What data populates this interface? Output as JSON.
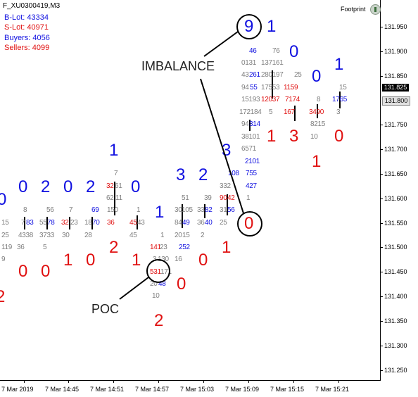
{
  "window": {
    "symbol": "F_XU0300419,M3",
    "indicator_name": "Footprint",
    "indicator_icon": "footprint-indicator-icon"
  },
  "stats": [
    {
      "label": "B-Lot:",
      "value": "43334",
      "color": "#1010e0"
    },
    {
      "label": "S-Lot:",
      "value": "40971",
      "color": "#e01010"
    },
    {
      "label": "Buyers:",
      "value": "4056",
      "color": "#1010e0"
    },
    {
      "label": "Sellers:",
      "value": "4099",
      "color": "#e01010"
    }
  ],
  "price_axis": {
    "labels": [
      "131.950",
      "131.900",
      "131.850",
      "131.800",
      "131.750",
      "131.700",
      "131.650",
      "131.600",
      "131.550",
      "131.500",
      "131.450",
      "131.400",
      "131.350",
      "131.300",
      "131.250"
    ],
    "current_bid": "131.825",
    "current_ask": "131.800"
  },
  "time_axis": {
    "labels": [
      "7 Mar 2019",
      "7 Mar 14:45",
      "7 Mar 14:51",
      "7 Mar 14:57",
      "7 Mar 15:03",
      "7 Mar 15:09",
      "7 Mar 15:15",
      "7 Mar 15:21"
    ]
  },
  "annotations": {
    "imbalance": "IMBALANCE",
    "poc": "POC",
    "imbalance_circled_top": "9",
    "imbalance_circled_bottom": "0"
  },
  "big_numbers": [
    {
      "t": "0",
      "c": "blue"
    },
    {
      "t": "0",
      "c": "blue"
    },
    {
      "t": "2",
      "c": "blue"
    },
    {
      "t": "0",
      "c": "blue"
    },
    {
      "t": "2",
      "c": "blue"
    },
    {
      "t": "0",
      "c": "blue"
    },
    {
      "t": "1",
      "c": "blue"
    },
    {
      "t": "1",
      "c": "blue"
    },
    {
      "t": "3",
      "c": "blue"
    },
    {
      "t": "2",
      "c": "blue"
    },
    {
      "t": "3",
      "c": "blue"
    },
    {
      "t": "1",
      "c": "blue"
    },
    {
      "t": "0",
      "c": "blue"
    },
    {
      "t": "0",
      "c": "blue"
    },
    {
      "t": "1",
      "c": "blue"
    },
    {
      "t": "2",
      "c": "red"
    },
    {
      "t": "0",
      "c": "red"
    },
    {
      "t": "0",
      "c": "red"
    },
    {
      "t": "1",
      "c": "red"
    },
    {
      "t": "0",
      "c": "red"
    },
    {
      "t": "2",
      "c": "red"
    },
    {
      "t": "1",
      "c": "red"
    },
    {
      "t": "0",
      "c": "red"
    },
    {
      "t": "0",
      "c": "red"
    },
    {
      "t": "0",
      "c": "red"
    },
    {
      "t": "1",
      "c": "red"
    },
    {
      "t": "2",
      "c": "red"
    },
    {
      "t": "1",
      "c": "red"
    },
    {
      "t": "3",
      "c": "red"
    },
    {
      "t": "0",
      "c": "red"
    },
    {
      "t": "1",
      "c": "red"
    }
  ],
  "cells": [
    {
      "t": "15",
      "c": "gray"
    },
    {
      "t": "25",
      "c": "gray"
    },
    {
      "t": "119",
      "c": "gray"
    },
    {
      "t": "9",
      "c": "gray"
    },
    {
      "t": "8",
      "c": "gray"
    },
    {
      "t": "7",
      "c": "gray"
    },
    {
      "t": "83",
      "c": "blue"
    },
    {
      "t": "4338",
      "c": "gray"
    },
    {
      "t": "36",
      "c": "gray"
    },
    {
      "t": "56",
      "c": "gray"
    },
    {
      "t": "55",
      "c": "gray"
    },
    {
      "t": "78",
      "c": "blue"
    },
    {
      "t": "3733",
      "c": "gray"
    },
    {
      "t": "5",
      "c": "gray"
    },
    {
      "t": "7",
      "c": "gray"
    },
    {
      "t": "32",
      "c": "red"
    },
    {
      "t": "23",
      "c": "gray"
    },
    {
      "t": "30",
      "c": "gray"
    },
    {
      "t": "69",
      "c": "blue"
    },
    {
      "t": "18",
      "c": "gray"
    },
    {
      "t": "70",
      "c": "blue"
    },
    {
      "t": "28",
      "c": "gray"
    },
    {
      "t": "7",
      "c": "gray"
    },
    {
      "t": "32",
      "c": "red"
    },
    {
      "t": "61",
      "c": "gray"
    },
    {
      "t": "62",
      "c": "gray"
    },
    {
      "t": "11",
      "c": "gray"
    },
    {
      "t": "150",
      "c": "gray"
    },
    {
      "t": "36",
      "c": "red"
    },
    {
      "t": "1",
      "c": "gray"
    },
    {
      "t": "45",
      "c": "red"
    },
    {
      "t": "43",
      "c": "gray"
    },
    {
      "t": "45",
      "c": "gray"
    },
    {
      "t": "51",
      "c": "gray"
    },
    {
      "t": "30",
      "c": "gray"
    },
    {
      "t": "105",
      "c": "gray"
    },
    {
      "t": "84",
      "c": "gray"
    },
    {
      "t": "49",
      "c": "blue"
    },
    {
      "t": "1",
      "c": "gray"
    },
    {
      "t": "20",
      "c": "gray"
    },
    {
      "t": "15",
      "c": "gray"
    },
    {
      "t": "141",
      "c": "red"
    },
    {
      "t": "23",
      "c": "gray"
    },
    {
      "t": "252",
      "c": "blue"
    },
    {
      "t": "3",
      "c": "gray"
    },
    {
      "t": "130",
      "c": "gray"
    },
    {
      "t": "16",
      "c": "gray"
    },
    {
      "t": "531",
      "c": "red"
    },
    {
      "t": "171",
      "c": "gray"
    },
    {
      "t": "20",
      "c": "gray"
    },
    {
      "t": "48",
      "c": "blue"
    },
    {
      "t": "10",
      "c": "gray"
    },
    {
      "t": "39",
      "c": "gray"
    },
    {
      "t": "33",
      "c": "gray"
    },
    {
      "t": "82",
      "c": "blue"
    },
    {
      "t": "36",
      "c": "gray"
    },
    {
      "t": "40",
      "c": "blue"
    },
    {
      "t": "2",
      "c": "gray"
    },
    {
      "t": "332",
      "c": "gray"
    },
    {
      "t": "90",
      "c": "red"
    },
    {
      "t": "42",
      "c": "red"
    },
    {
      "t": "31",
      "c": "gray"
    },
    {
      "t": "56",
      "c": "blue"
    },
    {
      "t": "25",
      "c": "gray"
    },
    {
      "t": "108",
      "c": "blue"
    },
    {
      "t": "755",
      "c": "blue"
    },
    {
      "t": "427",
      "c": "blue"
    },
    {
      "t": "1",
      "c": "gray"
    },
    {
      "t": "46",
      "c": "blue"
    },
    {
      "t": "0131",
      "c": "gray"
    },
    {
      "t": "43",
      "c": "gray"
    },
    {
      "t": "261",
      "c": "blue"
    },
    {
      "t": "94",
      "c": "gray"
    },
    {
      "t": "55",
      "c": "blue"
    },
    {
      "t": "15193",
      "c": "gray"
    },
    {
      "t": "172184",
      "c": "gray"
    },
    {
      "t": "94",
      "c": "gray"
    },
    {
      "t": "314",
      "c": "blue"
    },
    {
      "t": "38101",
      "c": "gray"
    },
    {
      "t": "6571",
      "c": "gray"
    },
    {
      "t": "2101",
      "c": "blue"
    },
    {
      "t": "76",
      "c": "gray"
    },
    {
      "t": "137161",
      "c": "gray"
    },
    {
      "t": "280197",
      "c": "gray"
    },
    {
      "t": "17553",
      "c": "gray"
    },
    {
      "t": "12037",
      "c": "red"
    },
    {
      "t": "5",
      "c": "gray"
    },
    {
      "t": "25",
      "c": "gray"
    },
    {
      "t": "1159",
      "c": "red"
    },
    {
      "t": "7174",
      "c": "red"
    },
    {
      "t": "167",
      "c": "red"
    },
    {
      "t": "8",
      "c": "gray"
    },
    {
      "t": "3490",
      "c": "red"
    },
    {
      "t": "8215",
      "c": "gray"
    },
    {
      "t": "10",
      "c": "gray"
    },
    {
      "t": "15",
      "c": "gray"
    },
    {
      "t": "1765",
      "c": "blue"
    },
    {
      "t": "3",
      "c": "gray"
    }
  ]
}
